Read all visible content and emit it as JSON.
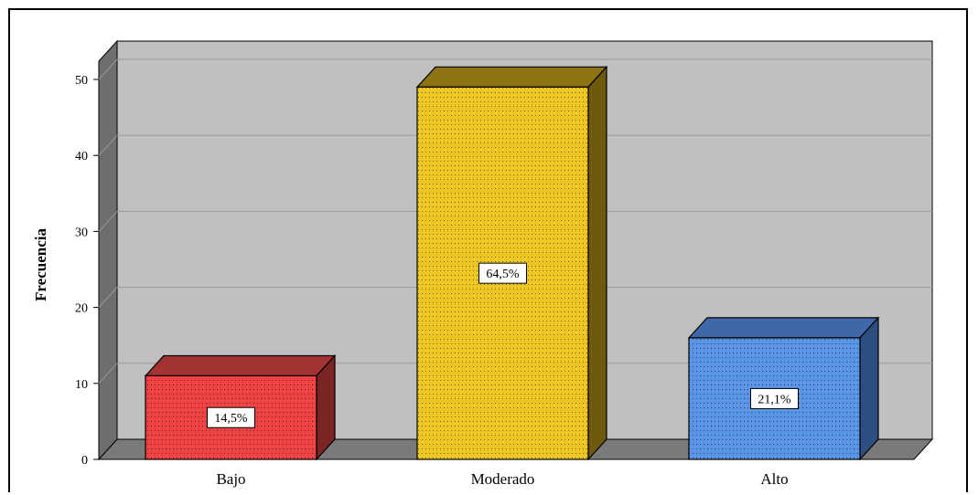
{
  "chart_data": {
    "type": "bar",
    "style": "3d",
    "title": "",
    "xlabel": "",
    "ylabel": "Frecuencia",
    "ylim": [
      0,
      50
    ],
    "yticks": [
      0,
      10,
      20,
      30,
      40,
      50
    ],
    "grid": true,
    "legend": "none",
    "categories": [
      "Bajo",
      "Moderado",
      "Alto"
    ],
    "values": [
      11,
      49,
      16
    ],
    "data_labels": [
      "14,5%",
      "64,5%",
      "21,1%"
    ],
    "colors": {
      "front": [
        "#ee4444",
        "#eec822",
        "#5a95e6"
      ],
      "top": [
        "#a33232",
        "#8e7410",
        "#3e68a8"
      ],
      "side": [
        "#7a2424",
        "#6f5a0c",
        "#2d4e80"
      ],
      "plot_back": "#c0c0c0",
      "floor": "#7a7a7a",
      "wall_side": "#6e6e6e"
    }
  }
}
